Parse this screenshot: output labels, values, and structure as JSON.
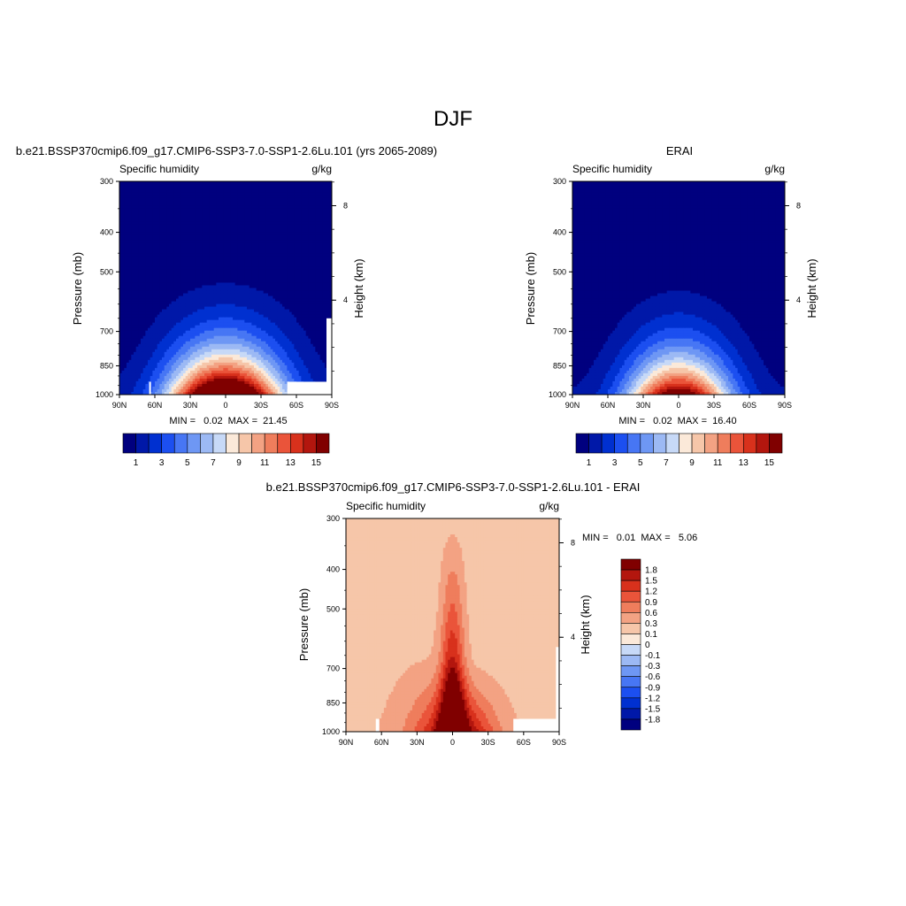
{
  "figure": {
    "title": "DJF"
  },
  "colors": {
    "model_levels": [
      "#00007f",
      "#0018a8",
      "#0030d0",
      "#1c4ff0",
      "#4776f4",
      "#6e97f4",
      "#9cb9f4",
      "#c7d9f7",
      "#fbe9d9",
      "#f6c6a9",
      "#f3a283",
      "#ef7d5c",
      "#ea543a",
      "#d8311c",
      "#b3160e",
      "#800000"
    ],
    "diff_levels": [
      "#00007f",
      "#0018a8",
      "#0030d0",
      "#1c4ff0",
      "#4776f4",
      "#6e97f4",
      "#9cb9f4",
      "#c7d9f7",
      "#fbe9d9",
      "#f6c6a9",
      "#f3a283",
      "#ef7d5c",
      "#ea543a",
      "#d8311c",
      "#b3160e",
      "#800000"
    ],
    "missing": "#ffffff"
  },
  "chart_data": [
    {
      "type": "heatmap",
      "id": "model",
      "title": "b.e21.BSSP370cmip6.f09_g17.CMIP6-SSP3-7.0-SSP1-2.6Lu.101 (yrs 2065-2089)",
      "left_string": "Specific humidity",
      "right_string": "g/kg",
      "ylabel": "Pressure (mb)",
      "y2label": "Height (km)",
      "x_ticks": [
        "90N",
        "60N",
        "30N",
        "0",
        "30S",
        "60S",
        "90S"
      ],
      "y_ticks": [
        "300",
        "400",
        "500",
        "700",
        "850",
        "1000"
      ],
      "y_tick_values": [
        300,
        400,
        500,
        700,
        850,
        1000
      ],
      "y2_ticks": [
        "8",
        "4"
      ],
      "y2_tick_values": [
        8,
        4
      ],
      "stats": "MIN =   0.02  MAX =  21.45",
      "colorbar_labels": [
        "1",
        "3",
        "5",
        "7",
        "9",
        "11",
        "13",
        "15"
      ],
      "colorbar_levels": [
        1,
        2,
        3,
        4,
        5,
        6,
        7,
        8,
        9,
        10,
        11,
        12,
        13,
        14,
        15
      ],
      "xlim": [
        -90,
        90
      ],
      "ylim": [
        1000,
        300
      ],
      "field": {
        "peak_lat": 0,
        "peak_value": 21.45,
        "width_deg": 30,
        "min": 0.02
      }
    },
    {
      "type": "heatmap",
      "id": "obs",
      "title": "ERAI",
      "left_string": "Specific humidity",
      "right_string": "g/kg",
      "ylabel": "Pressure (mb)",
      "y2label": "Height (km)",
      "x_ticks": [
        "90N",
        "60N",
        "30N",
        "0",
        "30S",
        "60S",
        "90S"
      ],
      "y_ticks": [
        "300",
        "400",
        "500",
        "700",
        "850",
        "1000"
      ],
      "y_tick_values": [
        300,
        400,
        500,
        700,
        850,
        1000
      ],
      "y2_ticks": [
        "8",
        "4"
      ],
      "y2_tick_values": [
        8,
        4
      ],
      "stats": "MIN =   0.02  MAX =  16.40",
      "colorbar_labels": [
        "1",
        "3",
        "5",
        "7",
        "9",
        "11",
        "13",
        "15"
      ],
      "colorbar_levels": [
        1,
        2,
        3,
        4,
        5,
        6,
        7,
        8,
        9,
        10,
        11,
        12,
        13,
        14,
        15
      ],
      "xlim": [
        -90,
        90
      ],
      "ylim": [
        1000,
        300
      ],
      "field": {
        "peak_lat": 0,
        "peak_value": 16.4,
        "width_deg": 28,
        "min": 0.02
      }
    },
    {
      "type": "heatmap",
      "id": "diff",
      "title": "b.e21.BSSP370cmip6.f09_g17.CMIP6-SSP3-7.0-SSP1-2.6Lu.101 - ERAI",
      "left_string": "Specific humidity",
      "right_string": "g/kg",
      "ylabel": "Pressure (mb)",
      "y2label": "Height (km)",
      "x_ticks": [
        "90N",
        "60N",
        "30N",
        "0",
        "30S",
        "60S",
        "90S"
      ],
      "y_ticks": [
        "300",
        "400",
        "500",
        "700",
        "850",
        "1000"
      ],
      "y_tick_values": [
        300,
        400,
        500,
        700,
        850,
        1000
      ],
      "y2_ticks": [
        "8",
        "4"
      ],
      "y2_tick_values": [
        8,
        4
      ],
      "stats": "MIN =   0.01  MAX =   5.06",
      "colorbar_labels": [
        "1.8",
        "1.5",
        "1.2",
        "0.9",
        "0.6",
        "0.3",
        "0.1",
        "0",
        "-0.1",
        "-0.3",
        "-0.6",
        "-0.9",
        "-1.2",
        "-1.5",
        "-1.8"
      ],
      "colorbar_levels": [
        1.8,
        1.5,
        1.2,
        0.9,
        0.6,
        0.3,
        0.1,
        0,
        -0.1,
        -0.3,
        -0.6,
        -0.9,
        -1.2,
        -1.5,
        -1.8
      ],
      "xlim": [
        -90,
        90
      ],
      "ylim": [
        1000,
        300
      ],
      "field": {
        "peak_lat": 0,
        "peak_value": 5.06,
        "min": 0.01
      }
    }
  ]
}
